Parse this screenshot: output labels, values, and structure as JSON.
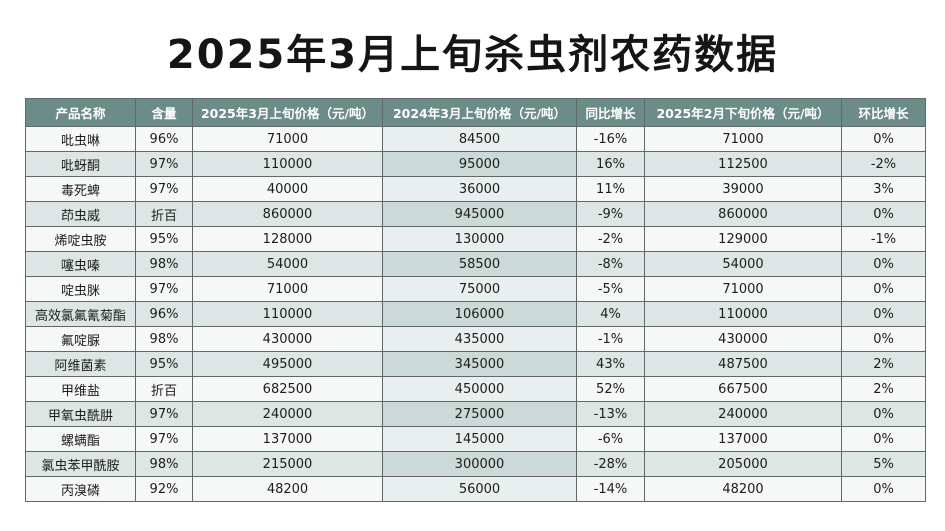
{
  "title": "2025年3月上旬杀虫剂农药数据",
  "table": {
    "columns": [
      "产品名称",
      "含量",
      "2025年3月上旬价格（元/吨）",
      "2024年3月上旬价格（元/吨）",
      "同比增长",
      "2025年2月下旬价格（元/吨）",
      "环比增长"
    ],
    "rows": [
      [
        "吡虫啉",
        "96%",
        "71000",
        "84500",
        "-16%",
        "71000",
        "0%"
      ],
      [
        "吡蚜酮",
        "97%",
        "110000",
        "95000",
        "16%",
        "112500",
        "-2%"
      ],
      [
        "毒死蜱",
        "97%",
        "40000",
        "36000",
        "11%",
        "39000",
        "3%"
      ],
      [
        "茚虫威",
        "折百",
        "860000",
        "945000",
        "-9%",
        "860000",
        "0%"
      ],
      [
        "烯啶虫胺",
        "95%",
        "128000",
        "130000",
        "-2%",
        "129000",
        "-1%"
      ],
      [
        "噻虫嗪",
        "98%",
        "54000",
        "58500",
        "-8%",
        "54000",
        "0%"
      ],
      [
        "啶虫脒",
        "97%",
        "71000",
        "75000",
        "-5%",
        "71000",
        "0%"
      ],
      [
        "高效氯氟氰菊酯",
        "96%",
        "110000",
        "106000",
        "4%",
        "110000",
        "0%"
      ],
      [
        "氟啶脲",
        "98%",
        "430000",
        "435000",
        "-1%",
        "430000",
        "0%"
      ],
      [
        "阿维菌素",
        "95%",
        "495000",
        "345000",
        "43%",
        "487500",
        "2%"
      ],
      [
        "甲维盐",
        "折百",
        "682500",
        "450000",
        "52%",
        "667500",
        "2%"
      ],
      [
        "甲氧虫酰肼",
        "97%",
        "240000",
        "275000",
        "-13%",
        "240000",
        "0%"
      ],
      [
        "螺螨酯",
        "97%",
        "137000",
        "145000",
        "-6%",
        "137000",
        "0%"
      ],
      [
        "氯虫苯甲酰胺",
        "98%",
        "215000",
        "300000",
        "-28%",
        "205000",
        "5%"
      ],
      [
        "丙溴磷",
        "92%",
        "48200",
        "56000",
        "-14%",
        "48200",
        "0%"
      ]
    ]
  }
}
